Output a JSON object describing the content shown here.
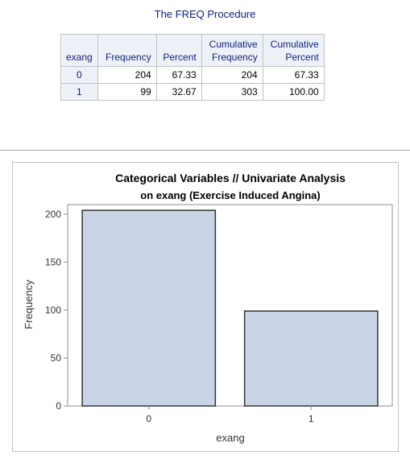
{
  "report": {
    "procedure_title": "The FREQ Procedure"
  },
  "freq_table": {
    "headers": [
      "exang",
      "Frequency",
      "Percent",
      [
        "Cumulative",
        "Frequency"
      ],
      [
        "Cumulative",
        "Percent"
      ]
    ],
    "rows": [
      {
        "exang": "0",
        "frequency": "204",
        "percent": "67.33",
        "cum_frequency": "204",
        "cum_percent": "67.33"
      },
      {
        "exang": "1",
        "frequency": "99",
        "percent": "32.67",
        "cum_frequency": "303",
        "cum_percent": "100.00"
      }
    ]
  },
  "chart_data": {
    "type": "bar",
    "title": "Categorical Variables // Univariate Analysis",
    "subtitle": "on exang (Exercise Induced Angina)",
    "categories": [
      "0",
      "1"
    ],
    "values": [
      204,
      99
    ],
    "xlabel": "exang",
    "ylabel": "Frequency",
    "ylim": [
      0,
      210
    ],
    "yticks": [
      0,
      50,
      100,
      150,
      200
    ],
    "grid": false,
    "bar_fill": "#c9d5e6",
    "bar_stroke": "#333333"
  }
}
